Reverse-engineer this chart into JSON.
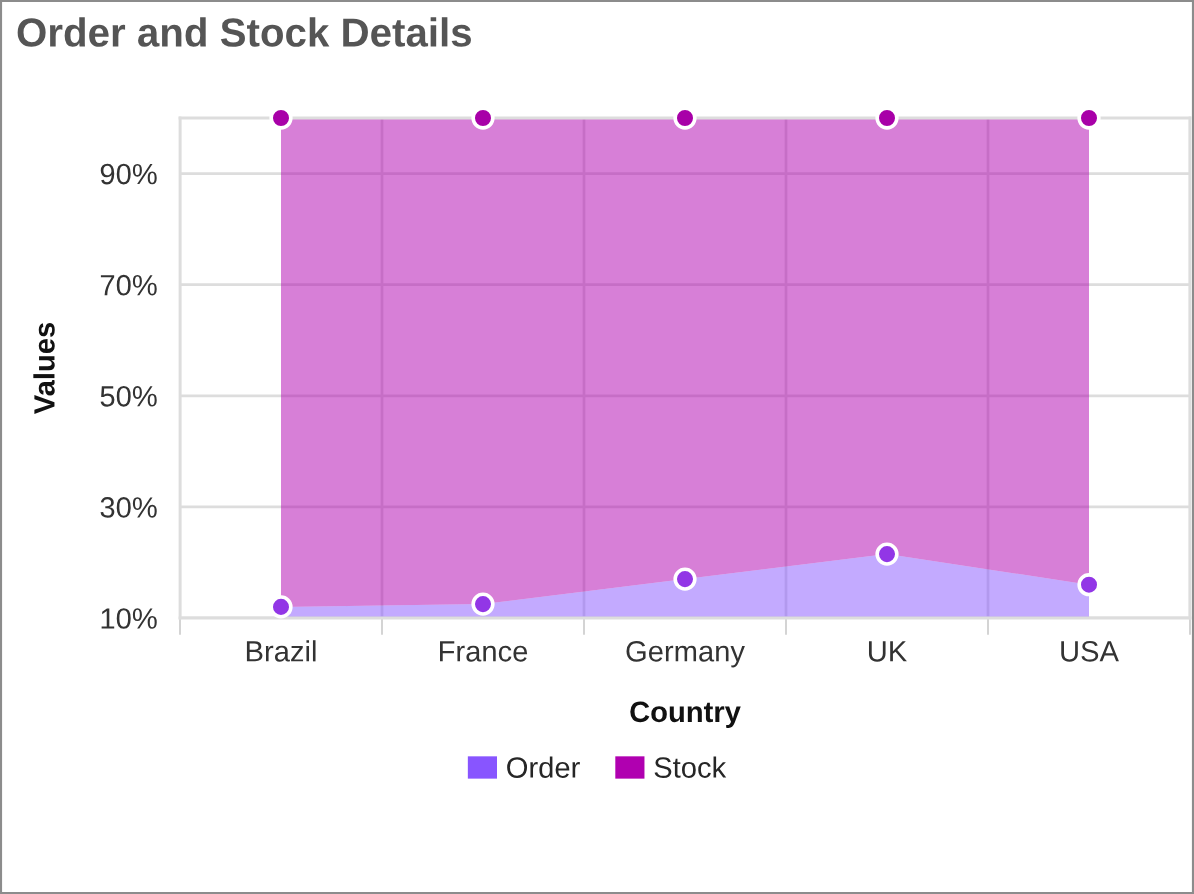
{
  "chart_data": {
    "type": "area",
    "title": "Order and Stock Details",
    "xlabel": "Country",
    "ylabel": "Values",
    "categories": [
      "Brazil",
      "France",
      "Germany",
      "UK",
      "USA"
    ],
    "stacked": true,
    "series": [
      {
        "name": "Order",
        "color": "#8855ff",
        "colors": [
          "#9236e6",
          "#9236e6",
          "#9236e6",
          "#9236e6",
          "#9236e6"
        ],
        "values": [
          12,
          12.5,
          17,
          21.5,
          16
        ]
      },
      {
        "name": "Stock",
        "color": "#b000b0",
        "colors": [
          "#a800a8",
          "#a800a8",
          "#a800a8",
          "#a800a8",
          "#a800a8"
        ],
        "values": [
          88,
          87.5,
          83,
          78.5,
          84
        ]
      }
    ],
    "ylim": [
      10,
      100
    ],
    "yticks": [
      {
        "value": 10,
        "label": "10%"
      },
      {
        "value": 30,
        "label": "30%"
      },
      {
        "value": 50,
        "label": "50%"
      },
      {
        "value": 70,
        "label": "70%"
      },
      {
        "value": 90,
        "label": "90%"
      }
    ],
    "grid": true,
    "legend": "bottom",
    "marker": "circle"
  }
}
